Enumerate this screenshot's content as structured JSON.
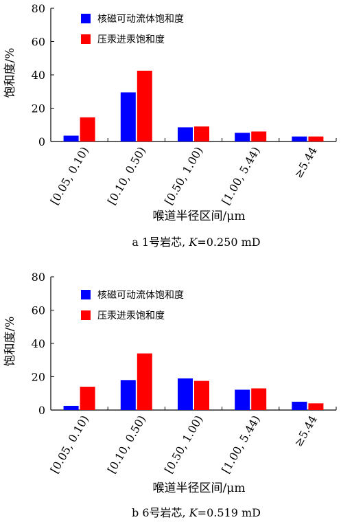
{
  "colors": {
    "nmr": "#0000ff",
    "mercury": "#ff0000",
    "axis": "#000000"
  },
  "chart_data": [
    {
      "type": "bar",
      "caption": "a  1号岩芯, ",
      "caption_k": "K",
      "caption_value": "=0.250 mD",
      "xlabel": "喉道半径区间/μm",
      "ylabel": "饱和度/%",
      "ylim": [
        0,
        80
      ],
      "yticks": [
        0,
        20,
        40,
        60,
        80
      ],
      "categories": [
        "[0.05, 0.10)",
        "[0.10, 0.50)",
        "[0.50, 1.00)",
        "[1.00, 5.44)",
        "≥5.44"
      ],
      "series": [
        {
          "name": "核磁可动流体饱和度",
          "color_key": "nmr",
          "values": [
            3.5,
            29.5,
            8.5,
            5.2,
            3.0
          ]
        },
        {
          "name": "压汞进汞饱和度",
          "color_key": "mercury",
          "values": [
            14.5,
            42.5,
            9.0,
            6.0,
            3.0
          ]
        }
      ],
      "legend_position": "top-left"
    },
    {
      "type": "bar",
      "caption": "b  6号岩芯, ",
      "caption_k": "K",
      "caption_value": "=0.519 mD",
      "xlabel": "喉道半径区间/μm",
      "ylabel": "饱和度/%",
      "ylim": [
        0,
        80
      ],
      "yticks": [
        0,
        20,
        40,
        60,
        80
      ],
      "categories": [
        "[0.05, 0.10)",
        "[0.10, 0.50)",
        "[0.50, 1.00)",
        "[1.00, 5.44)",
        "≥5.44"
      ],
      "series": [
        {
          "name": "核磁可动流体饱和度",
          "color_key": "nmr",
          "values": [
            2.5,
            18.0,
            19.0,
            12.2,
            5.0
          ]
        },
        {
          "name": "压汞进汞饱和度",
          "color_key": "mercury",
          "values": [
            14.0,
            34.0,
            17.5,
            13.0,
            4.0
          ]
        }
      ],
      "legend_position": "top-left"
    }
  ]
}
